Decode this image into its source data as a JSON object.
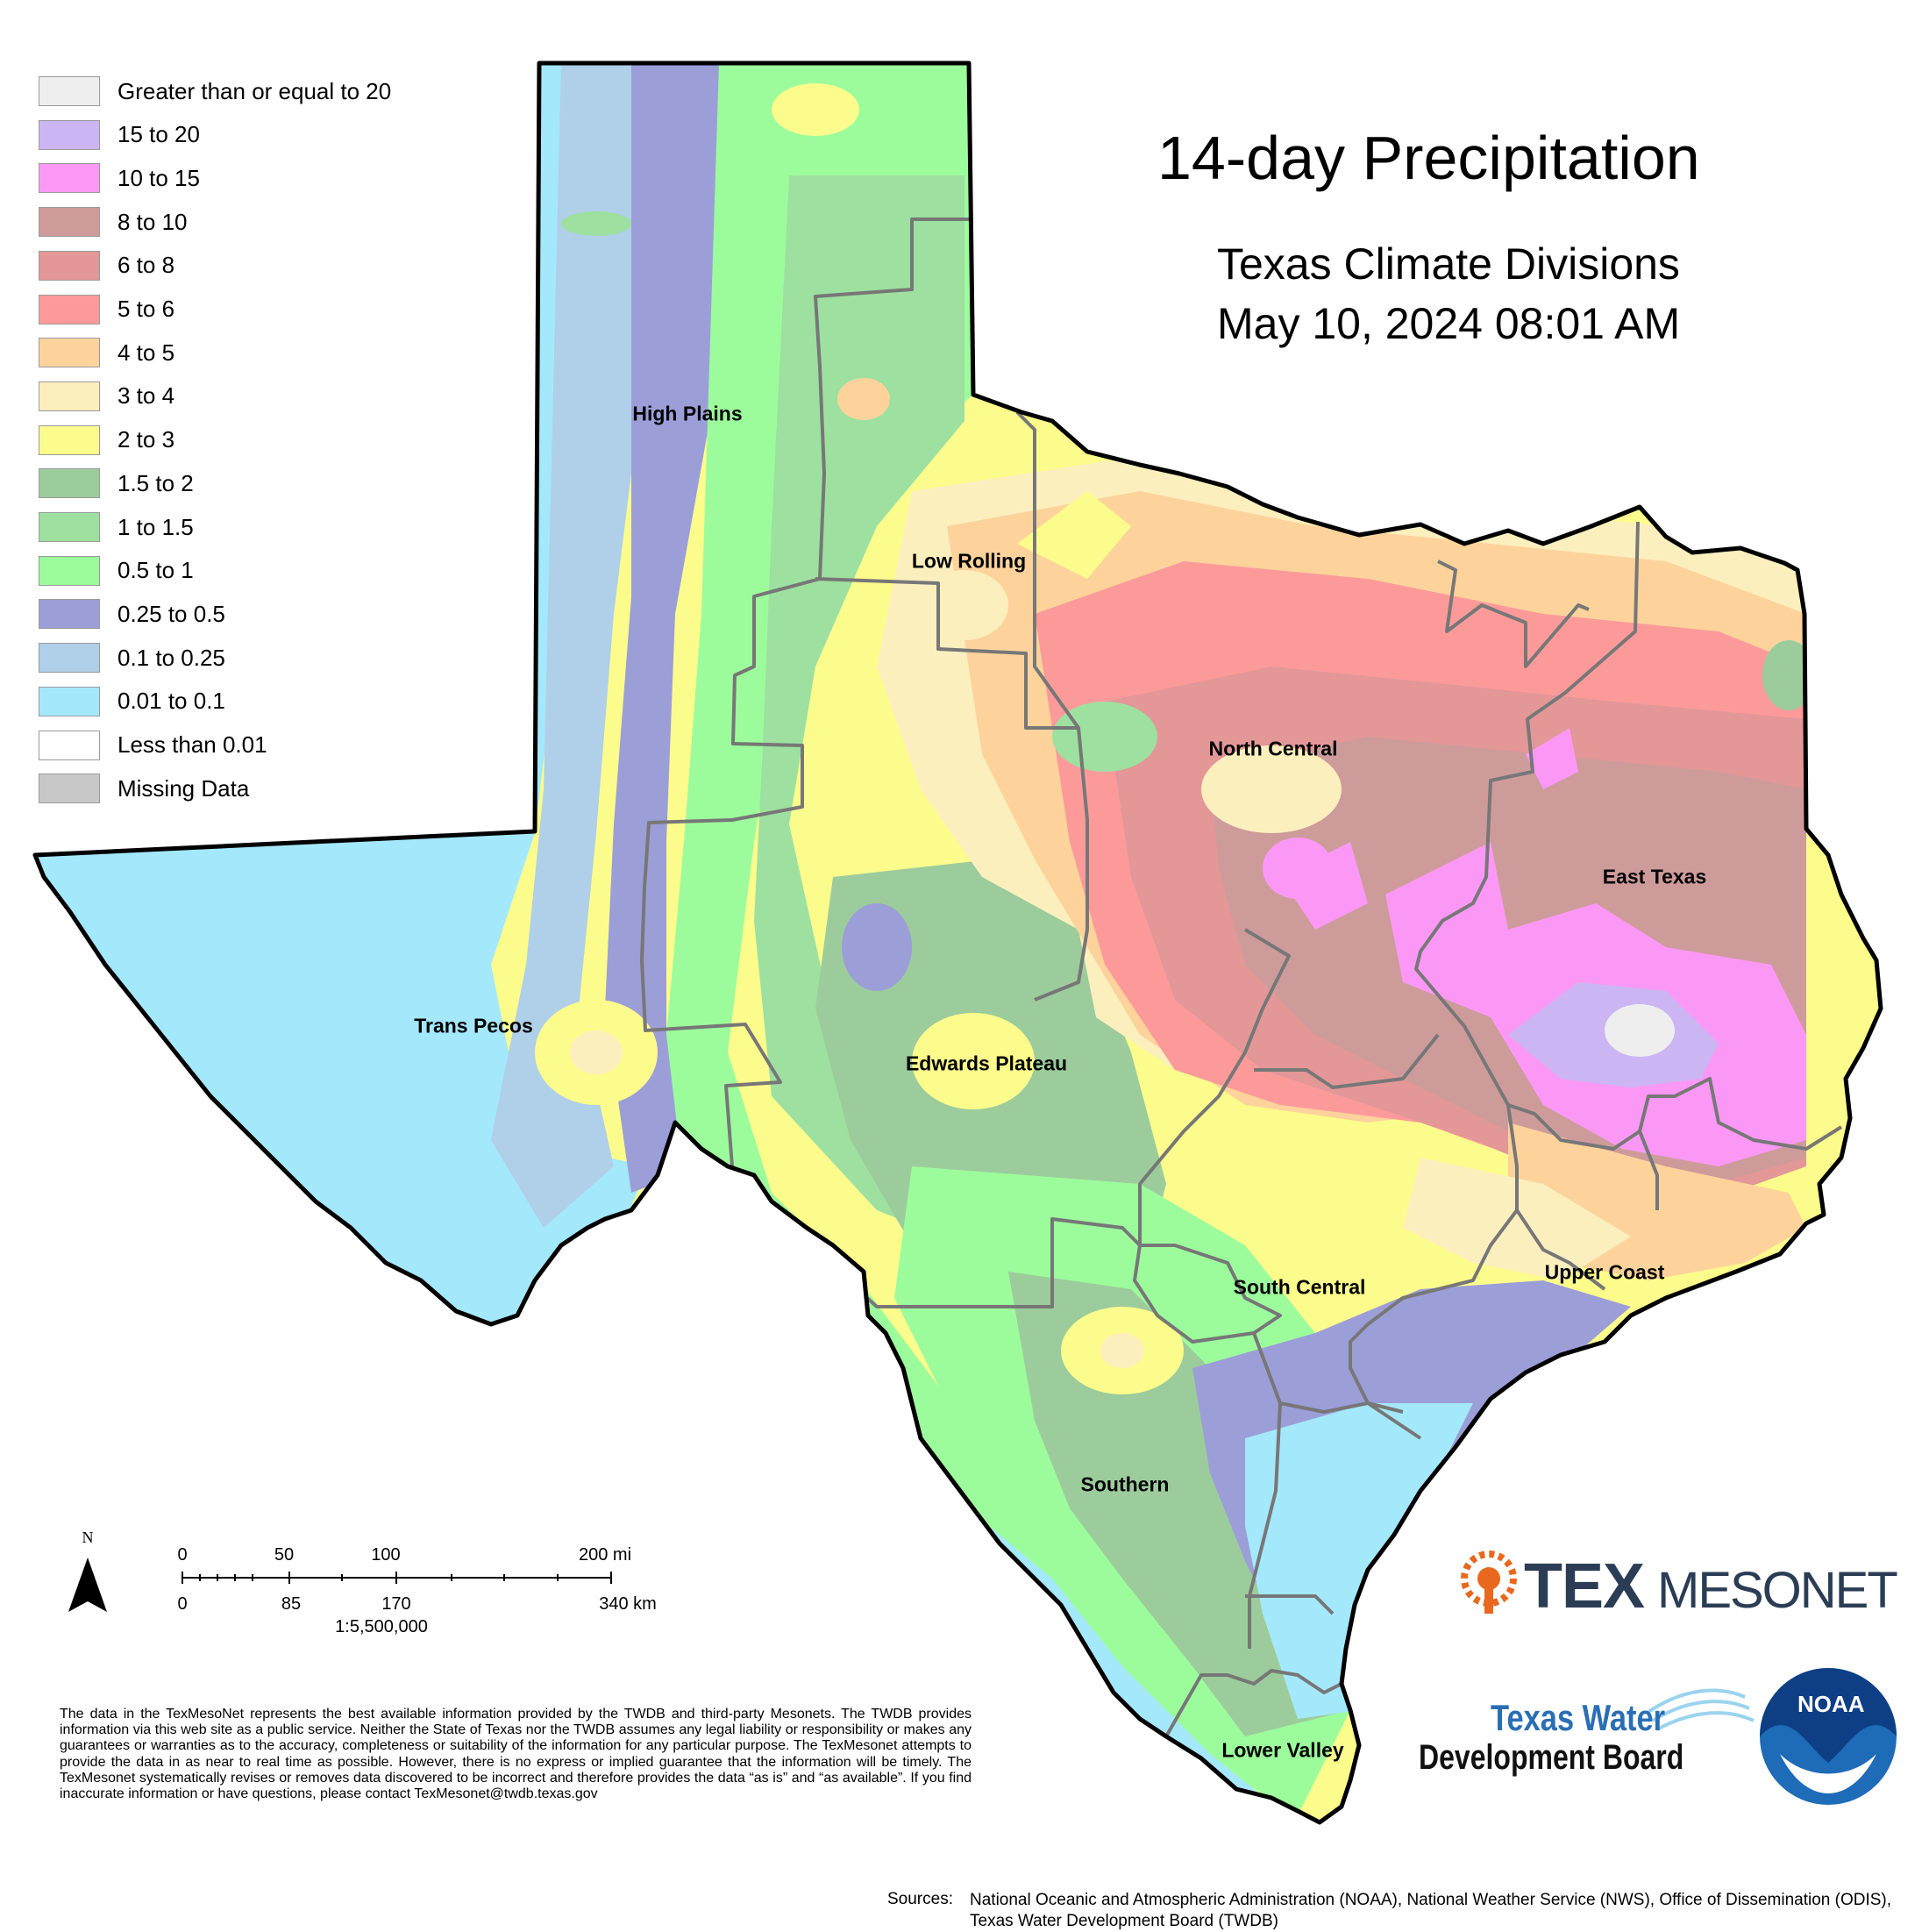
{
  "title": "14-day Precipitation",
  "subtitle": "Texas Climate Divisions",
  "date": "May 10, 2024 08:01 AM",
  "legend": [
    {
      "label": "Greater than or equal to 20",
      "color": "#eeeeee"
    },
    {
      "label": "15 to 20",
      "color": "#cbb6f3"
    },
    {
      "label": "10 to 15",
      "color": "#fb98f6"
    },
    {
      "label": "8 to 10",
      "color": "#ce9b9b"
    },
    {
      "label": "6 to 8",
      "color": "#e39797"
    },
    {
      "label": "5 to 6",
      "color": "#fc9a9a"
    },
    {
      "label": "4 to 5",
      "color": "#fdd39b"
    },
    {
      "label": "3 to 4",
      "color": "#fcefbe"
    },
    {
      "label": "2 to 3",
      "color": "#fcfc8c"
    },
    {
      "label": "1.5 to 2",
      "color": "#9ccc9c"
    },
    {
      "label": "1 to 1.5",
      "color": "#9ee0a0"
    },
    {
      "label": "0.5 to 1",
      "color": "#9cfc9c"
    },
    {
      "label": "0.25 to 0.5",
      "color": "#9c9ed8"
    },
    {
      "label": "0.1 to 0.25",
      "color": "#b0cfe8"
    },
    {
      "label": "0.01 to 0.1",
      "color": "#a4e8fc"
    },
    {
      "label": "Less than 0.01",
      "color": "#ffffff"
    },
    {
      "label": "Missing Data",
      "color": "#c8c8c8"
    }
  ],
  "divisions": [
    {
      "label": "High Plains"
    },
    {
      "label": "Low Rolling"
    },
    {
      "label": "North Central"
    },
    {
      "label": "East Texas"
    },
    {
      "label": "Trans Pecos"
    },
    {
      "label": "Edwards Plateau"
    },
    {
      "label": "South Central"
    },
    {
      "label": "Upper Coast"
    },
    {
      "label": "Southern"
    },
    {
      "label": "Lower Valley"
    }
  ],
  "scale": {
    "north": "N",
    "miles": [
      "0",
      "50",
      "100",
      "200 mi"
    ],
    "km": [
      "0",
      "85",
      "170",
      "340 km"
    ],
    "ratio": "1:5,500,000"
  },
  "disclaimer": "The data in the TexMesoNet represents the best available information provided by the TWDB and third-party Mesonets. The TWDB provides information via this web site as a public service. Neither the State of Texas nor the TWDB assumes any legal liability or responsibility or makes any guarantees or warranties as to the accuracy, completeness or suitability of the information for any particular purpose. The TexMesonet attempts to provide the data in as near to real time as possible. However, there is no express or implied guarantee that the information will be timely. The TexMesonet systematically revises or removes data discovered to be incorrect and therefore provides the data “as is” and “as available”. If you find inaccurate information or have questions, please contact TexMesonet@twdb.texas.gov",
  "sources": {
    "label": "Sources:",
    "text": "National Oceanic and Atmospheric Administration (NOAA), National Weather Service (NWS), Office of Dissemination (ODIS), Texas Water Development Board (TWDB)"
  },
  "logos": {
    "texmesonet_a": "TEX",
    "texmesonet_b": "MESONET",
    "twdb_line1": "Texas Water",
    "twdb_line2": "Development Board",
    "noaa": "NOAA"
  }
}
